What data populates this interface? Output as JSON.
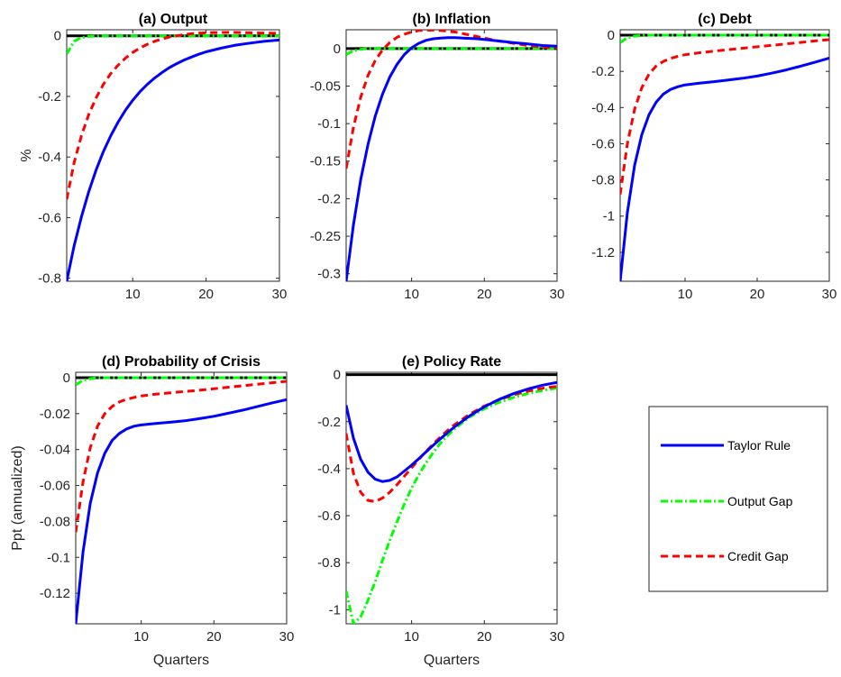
{
  "series_styles": [
    {
      "key": "taylor",
      "color": "#0000ff",
      "dash": ""
    },
    {
      "key": "output_gap",
      "color": "#00ff00",
      "dash": "8 3 2 3"
    },
    {
      "key": "credit_gap",
      "color": "#ff0000",
      "dash": "8 5"
    }
  ],
  "legend": {
    "entries": [
      "Taylor Rule",
      "Output Gap",
      "Credit Gap"
    ]
  },
  "chart_data": [
    {
      "type": "line",
      "title": "(a) Output",
      "xlabel": "",
      "ylabel": "%",
      "xlim": [
        1,
        30
      ],
      "ylim": [
        -0.81,
        0.02
      ],
      "xticks": [
        "10",
        "20",
        "30"
      ],
      "yticks": [
        "0",
        "-0.2",
        "-0.4",
        "-0.6",
        "-0.8"
      ],
      "ytick_values": [
        0,
        -0.2,
        -0.4,
        -0.6,
        -0.8
      ],
      "series": [
        {
          "x": [
            1,
            2,
            3,
            4,
            5,
            6,
            7,
            8,
            9,
            10,
            11,
            12,
            13,
            14,
            15,
            16,
            17,
            18,
            19,
            20,
            22,
            24,
            26,
            28,
            30
          ],
          "values": [
            -0.81,
            -0.695,
            -0.598,
            -0.515,
            -0.443,
            -0.382,
            -0.33,
            -0.285,
            -0.246,
            -0.213,
            -0.184,
            -0.16,
            -0.139,
            -0.121,
            -0.105,
            -0.092,
            -0.08,
            -0.07,
            -0.061,
            -0.053,
            -0.041,
            -0.031,
            -0.024,
            -0.018,
            -0.014
          ]
        },
        {
          "x": [
            1,
            2,
            3,
            4,
            5,
            6,
            8,
            10,
            15,
            20,
            25,
            30
          ],
          "values": [
            -0.06,
            -0.018,
            -0.006,
            -0.002,
            -0.001,
            0.0,
            0.0,
            0.0,
            0.0,
            0.0,
            0.0,
            0.0
          ]
        },
        {
          "x": [
            1,
            2,
            3,
            4,
            5,
            6,
            7,
            8,
            9,
            10,
            11,
            12,
            13,
            14,
            15,
            16,
            17,
            18,
            19,
            20,
            22,
            24,
            26,
            28,
            30
          ],
          "values": [
            -0.54,
            -0.42,
            -0.33,
            -0.26,
            -0.205,
            -0.16,
            -0.125,
            -0.097,
            -0.074,
            -0.055,
            -0.04,
            -0.028,
            -0.018,
            -0.01,
            -0.004,
            0.0,
            0.004,
            0.007,
            0.009,
            0.01,
            0.011,
            0.011,
            0.01,
            0.009,
            0.008
          ]
        }
      ]
    },
    {
      "type": "line",
      "title": "(b) Inflation",
      "xlabel": "",
      "ylabel": "",
      "xlim": [
        1,
        30
      ],
      "ylim": [
        -0.31,
        0.025
      ],
      "xticks": [
        "10",
        "20",
        "30"
      ],
      "yticks": [
        "0",
        "-0.05",
        "-0.1",
        "-0.15",
        "-0.2",
        "-0.25",
        "-0.3"
      ],
      "ytick_values": [
        0,
        -0.05,
        -0.1,
        -0.15,
        -0.2,
        -0.25,
        -0.3
      ],
      "series": [
        {
          "x": [
            1,
            2,
            3,
            4,
            5,
            6,
            7,
            8,
            9,
            10,
            11,
            12,
            13,
            14,
            15,
            16,
            17,
            18,
            19,
            20,
            22,
            24,
            26,
            28,
            30
          ],
          "values": [
            -0.31,
            -0.235,
            -0.175,
            -0.128,
            -0.09,
            -0.061,
            -0.038,
            -0.021,
            -0.008,
            0.001,
            0.007,
            0.011,
            0.013,
            0.014,
            0.0145,
            0.0145,
            0.014,
            0.0135,
            0.013,
            0.012,
            0.01,
            0.008,
            0.006,
            0.004,
            0.003
          ]
        },
        {
          "x": [
            1,
            2,
            3,
            4,
            5,
            6,
            8,
            10,
            15,
            20,
            25,
            30
          ],
          "values": [
            -0.008,
            -0.003,
            -0.001,
            0.0,
            0.0,
            0.0,
            0.0,
            0.0,
            0.0,
            0.0,
            0.0,
            0.0
          ]
        },
        {
          "x": [
            1,
            2,
            3,
            4,
            5,
            6,
            7,
            8,
            9,
            10,
            11,
            12,
            13,
            14,
            15,
            16,
            17,
            18,
            19,
            20,
            22,
            24,
            26,
            28,
            30
          ],
          "values": [
            -0.16,
            -0.105,
            -0.065,
            -0.036,
            -0.016,
            -0.002,
            0.008,
            0.015,
            0.019,
            0.022,
            0.024,
            0.0245,
            0.0245,
            0.024,
            0.023,
            0.022,
            0.02,
            0.018,
            0.016,
            0.014,
            0.01,
            0.007,
            0.004,
            0.002,
            0.001
          ]
        }
      ]
    },
    {
      "type": "line",
      "title": "(c) Debt",
      "xlabel": "",
      "ylabel": "",
      "xlim": [
        1,
        30
      ],
      "ylim": [
        -1.36,
        0.03
      ],
      "xticks": [
        "10",
        "20",
        "30"
      ],
      "yticks": [
        "0",
        "-0.2",
        "-0.4",
        "-0.6",
        "-0.8",
        "-1",
        "-1.2"
      ],
      "ytick_values": [
        0,
        -0.2,
        -0.4,
        -0.6,
        -0.8,
        -1,
        -1.2
      ],
      "series": [
        {
          "x": [
            1,
            2,
            3,
            4,
            5,
            6,
            7,
            8,
            9,
            10,
            12,
            14,
            16,
            18,
            20,
            22,
            24,
            26,
            28,
            30
          ],
          "values": [
            -1.36,
            -0.98,
            -0.72,
            -0.55,
            -0.44,
            -0.37,
            -0.325,
            -0.3,
            -0.285,
            -0.275,
            -0.265,
            -0.257,
            -0.248,
            -0.238,
            -0.226,
            -0.21,
            -0.192,
            -0.172,
            -0.15,
            -0.127
          ]
        },
        {
          "x": [
            1,
            2,
            3,
            4,
            5,
            6,
            8,
            10,
            15,
            20,
            25,
            30
          ],
          "values": [
            -0.04,
            -0.015,
            -0.005,
            -0.002,
            0.0,
            0.0,
            0.0,
            0.0,
            0.0,
            0.0,
            0.0,
            0.0
          ]
        },
        {
          "x": [
            1,
            2,
            3,
            4,
            5,
            6,
            7,
            8,
            9,
            10,
            12,
            14,
            16,
            18,
            20,
            22,
            24,
            26,
            28,
            30
          ],
          "values": [
            -0.88,
            -0.6,
            -0.41,
            -0.29,
            -0.215,
            -0.17,
            -0.145,
            -0.128,
            -0.117,
            -0.108,
            -0.097,
            -0.088,
            -0.08,
            -0.072,
            -0.064,
            -0.056,
            -0.048,
            -0.04,
            -0.032,
            -0.025
          ]
        }
      ]
    },
    {
      "type": "line",
      "title": "(d) Probability of Crisis",
      "xlabel": "Quarters",
      "ylabel": "Ppt (annualized)",
      "xlim": [
        1,
        30
      ],
      "ylim": [
        -0.137,
        0.003
      ],
      "xticks": [
        "10",
        "20",
        "30"
      ],
      "yticks": [
        "0",
        "-0.02",
        "-0.04",
        "-0.06",
        "-0.08",
        "-0.1",
        "-0.12"
      ],
      "ytick_values": [
        0,
        -0.02,
        -0.04,
        -0.06,
        -0.08,
        -0.1,
        -0.12
      ],
      "series": [
        {
          "x": [
            1,
            2,
            3,
            4,
            5,
            6,
            7,
            8,
            9,
            10,
            12,
            14,
            16,
            18,
            20,
            22,
            24,
            26,
            28,
            30
          ],
          "values": [
            -0.137,
            -0.097,
            -0.07,
            -0.053,
            -0.042,
            -0.035,
            -0.031,
            -0.0285,
            -0.027,
            -0.0263,
            -0.0255,
            -0.0248,
            -0.024,
            -0.0228,
            -0.0215,
            -0.0198,
            -0.018,
            -0.016,
            -0.014,
            -0.0122
          ]
        },
        {
          "x": [
            1,
            2,
            3,
            4,
            5,
            6,
            8,
            10,
            15,
            20,
            25,
            30
          ],
          "values": [
            -0.004,
            -0.0015,
            -0.0005,
            0.0,
            0.0,
            0.0,
            0.0,
            0.0,
            0.0,
            0.0,
            0.0,
            0.0
          ]
        },
        {
          "x": [
            1,
            2,
            3,
            4,
            5,
            6,
            7,
            8,
            9,
            10,
            12,
            14,
            16,
            18,
            20,
            22,
            24,
            26,
            28,
            30
          ],
          "values": [
            -0.086,
            -0.058,
            -0.039,
            -0.027,
            -0.02,
            -0.016,
            -0.0135,
            -0.012,
            -0.011,
            -0.0102,
            -0.0092,
            -0.0084,
            -0.0077,
            -0.007,
            -0.0062,
            -0.0053,
            -0.0045,
            -0.0036,
            -0.0028,
            -0.002
          ]
        }
      ]
    },
    {
      "type": "line",
      "title": "(e) Policy Rate",
      "xlabel": "Quarters",
      "ylabel": "",
      "xlim": [
        1,
        30
      ],
      "ylim": [
        -1.06,
        0.01
      ],
      "xticks": [
        "10",
        "20",
        "30"
      ],
      "yticks": [
        "0",
        "-0.2",
        "-0.4",
        "-0.6",
        "-0.8",
        "-1"
      ],
      "ytick_values": [
        0,
        -0.2,
        -0.4,
        -0.6,
        -0.8,
        -1
      ],
      "series": [
        {
          "x": [
            1,
            2,
            3,
            4,
            5,
            6,
            7,
            8,
            9,
            10,
            11,
            12,
            13,
            14,
            15,
            16,
            18,
            20,
            22,
            24,
            26,
            28,
            30
          ],
          "values": [
            -0.13,
            -0.27,
            -0.36,
            -0.415,
            -0.445,
            -0.455,
            -0.45,
            -0.435,
            -0.41,
            -0.385,
            -0.357,
            -0.328,
            -0.3,
            -0.272,
            -0.245,
            -0.22,
            -0.175,
            -0.137,
            -0.106,
            -0.081,
            -0.061,
            -0.045,
            -0.033
          ]
        },
        {
          "x": [
            1,
            2,
            3,
            4,
            5,
            6,
            7,
            8,
            9,
            10,
            11,
            12,
            13,
            14,
            15,
            16,
            18,
            20,
            22,
            24,
            26,
            28,
            30
          ],
          "values": [
            -0.92,
            -1.06,
            -1.03,
            -0.96,
            -0.88,
            -0.79,
            -0.705,
            -0.625,
            -0.55,
            -0.483,
            -0.425,
            -0.375,
            -0.33,
            -0.29,
            -0.257,
            -0.228,
            -0.18,
            -0.145,
            -0.118,
            -0.097,
            -0.08,
            -0.067,
            -0.057
          ]
        },
        {
          "x": [
            1,
            2,
            3,
            4,
            5,
            6,
            7,
            8,
            9,
            10,
            11,
            12,
            13,
            14,
            15,
            16,
            18,
            20,
            22,
            24,
            26,
            28,
            30
          ],
          "values": [
            -0.25,
            -0.42,
            -0.5,
            -0.535,
            -0.54,
            -0.525,
            -0.5,
            -0.468,
            -0.432,
            -0.396,
            -0.36,
            -0.326,
            -0.294,
            -0.264,
            -0.236,
            -0.211,
            -0.168,
            -0.134,
            -0.107,
            -0.086,
            -0.07,
            -0.058,
            -0.05
          ]
        }
      ]
    }
  ]
}
